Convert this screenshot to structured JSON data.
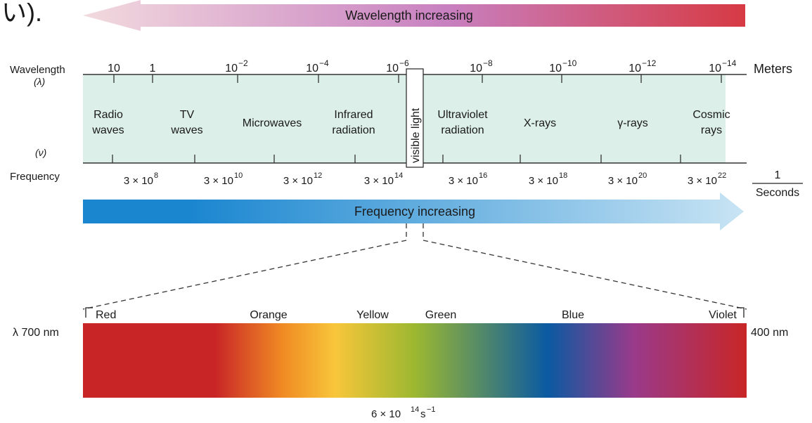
{
  "corner_glyph": "い).",
  "arrows": {
    "wavelength_label": "Wavelength increasing",
    "frequency_label": "Frequency increasing"
  },
  "wavelength_axis": {
    "label": "Wavelength",
    "symbol": "(λ)",
    "unit": "Meters",
    "ticks": [
      {
        "base": "10",
        "exp": ""
      },
      {
        "base": "1",
        "exp": ""
      },
      {
        "base": "10",
        "exp": "−2"
      },
      {
        "base": "10",
        "exp": "−4"
      },
      {
        "base": "10",
        "exp": "−6"
      },
      {
        "base": "10",
        "exp": "−8"
      },
      {
        "base": "10",
        "exp": "−10"
      },
      {
        "base": "10",
        "exp": "−12"
      },
      {
        "base": "10",
        "exp": "−14"
      }
    ]
  },
  "frequency_axis": {
    "label": "Frequency",
    "symbol": "(ν)",
    "unit_top": "1",
    "unit_bottom": "Seconds",
    "ticks": [
      {
        "base": "3 × 10",
        "exp": "8"
      },
      {
        "base": "3 × 10",
        "exp": "10"
      },
      {
        "base": "3 × 10",
        "exp": "12"
      },
      {
        "base": "3 × 10",
        "exp": "14"
      },
      {
        "base": "3 × 10",
        "exp": "16"
      },
      {
        "base": "3 × 10",
        "exp": "18"
      },
      {
        "base": "3 × 10",
        "exp": "20"
      },
      {
        "base": "3 × 10",
        "exp": "22"
      }
    ]
  },
  "regions": [
    {
      "line1": "Radio",
      "line2": "waves"
    },
    {
      "line1": "TV",
      "line2": "waves"
    },
    {
      "line1": "Microwaves",
      "line2": ""
    },
    {
      "line1": "Infrared",
      "line2": "radiation"
    },
    {
      "line1": "Ultraviolet",
      "line2": "radiation"
    },
    {
      "line1": "X-rays",
      "line2": ""
    },
    {
      "line1": "γ-rays",
      "line2": ""
    },
    {
      "line1": "Cosmic",
      "line2": "rays"
    }
  ],
  "visible_light_label": "visible light",
  "spectrum": {
    "left_label": "λ 700 nm",
    "right_label": "400 nm",
    "colors": [
      "Red",
      "Orange",
      "Yellow",
      "Green",
      "Blue",
      "Violet"
    ],
    "center_base": "6 × 10",
    "center_exp": "14",
    "center_unit": "s",
    "center_unit_exp": "−1"
  },
  "colors": {
    "band_fill": "#dcefe8",
    "wave_arrow_start": "#f2dade",
    "wave_arrow_mid": "#c880c0",
    "wave_arrow_end": "#d63a44",
    "freq_arrow_start": "#1a86d0",
    "freq_arrow_end": "#c8e4f4",
    "spectrum_red": "#c82626",
    "spectrum_orange": "#f08a24",
    "spectrum_yellow": "#f8c63a",
    "spectrum_green": "#9cb830",
    "spectrum_blue": "#0a5aa2",
    "spectrum_violet": "#9a3a8a"
  }
}
